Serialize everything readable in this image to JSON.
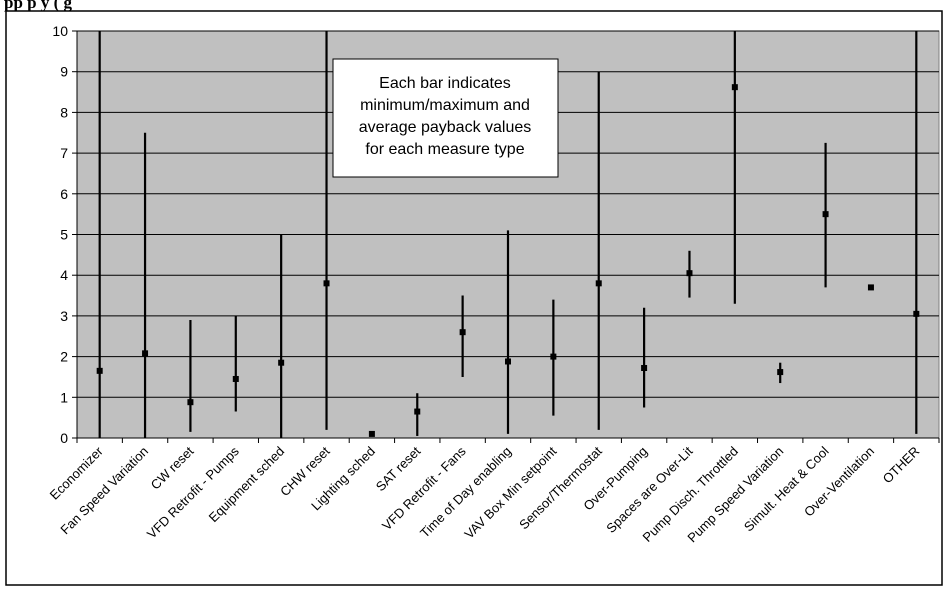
{
  "header_fragment": "pp                                                    p   y     (                                                                              g",
  "annotation": {
    "lines": [
      "Each bar indicates",
      "minimum/maximum and",
      "average payback values",
      "for each measure type"
    ]
  },
  "colors": {
    "plot_background": "#c0c0c0",
    "gridline": "#000000",
    "bar": "#000000",
    "marker": "#000000",
    "frame": "#000000"
  },
  "chart_data": {
    "type": "scatter",
    "chart_style": "min-max range bars with average marker",
    "title": "",
    "xlabel": "",
    "ylabel": "",
    "ylim": [
      0,
      10
    ],
    "yticks": [
      0,
      1,
      2,
      3,
      4,
      5,
      6,
      7,
      8,
      9,
      10
    ],
    "grid": "horizontal",
    "categories": [
      "Economizer",
      "Fan Speed Variation",
      "CW reset",
      "VFD Retrofit - Pumps",
      "Equipment sched",
      "CHW reset",
      "Lighting sched",
      "SAT reset",
      "VFD Retrofit - Fans",
      "Time of Day enabling",
      "VAV Box Min setpoint",
      "Sensor/Thermostat",
      "Over-Pumping",
      "Spaces are Over-Lit",
      "Pump Disch. Throttled",
      "Pump Speed Variation",
      "Simult. Heat & Cool",
      "Over-Ventilation",
      "OTHER"
    ],
    "series": [
      {
        "values": [
          10,
          7.5,
          2.9,
          3.0,
          5.0,
          10,
          null,
          1.1,
          3.5,
          5.1,
          3.4,
          9.0,
          3.2,
          4.6,
          10,
          1.85,
          7.25,
          null,
          10
        ]
      },
      {
        "values": [
          0,
          0,
          0.15,
          0.65,
          0,
          0.2,
          null,
          0.05,
          1.5,
          0.1,
          0.55,
          0.2,
          0.75,
          3.45,
          3.3,
          1.35,
          3.7,
          null,
          0.1
        ]
      },
      {
        "values": [
          1.65,
          2.08,
          0.88,
          1.45,
          1.85,
          3.8,
          0.1,
          0.65,
          2.6,
          1.88,
          2.0,
          3.8,
          1.72,
          4.05,
          8.62,
          1.62,
          5.5,
          3.7,
          3.05
        ]
      }
    ]
  }
}
